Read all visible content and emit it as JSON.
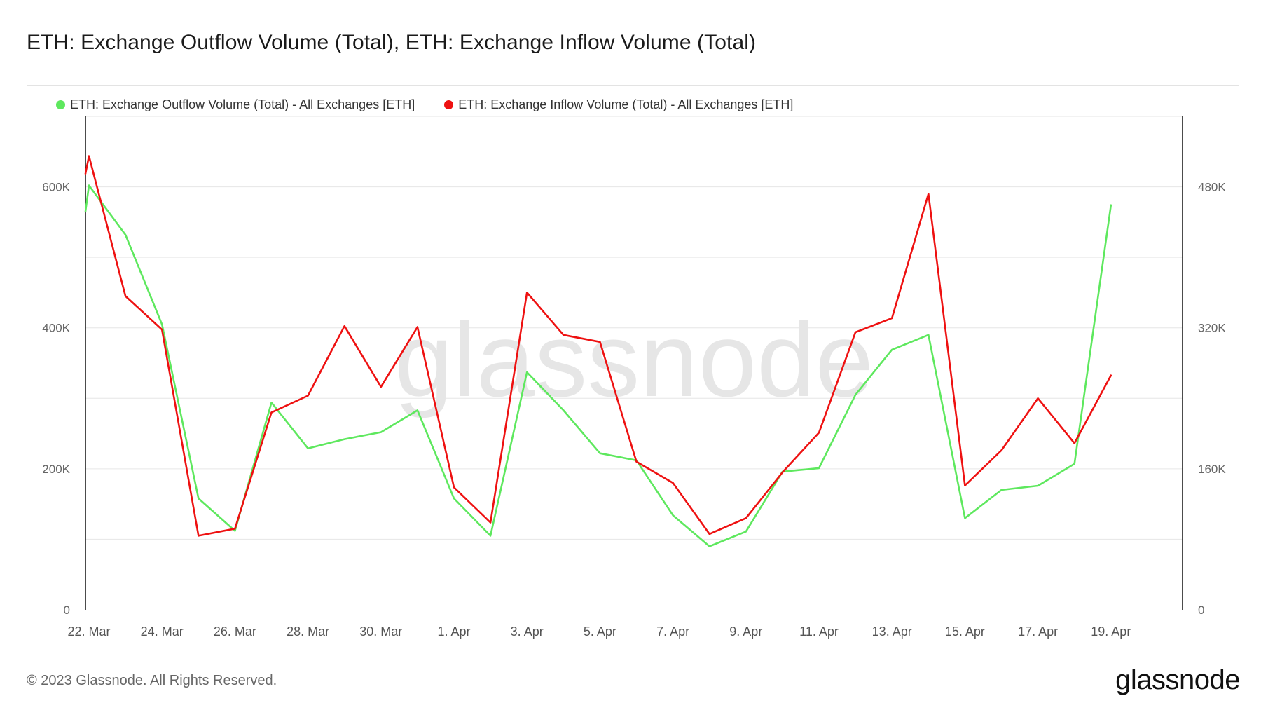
{
  "header": {
    "title": "ETH: Exchange Outflow Volume (Total), ETH: Exchange Inflow Volume (Total)"
  },
  "footer": {
    "copyright": "© 2023 Glassnode. All Rights Reserved.",
    "logo": "glassnode"
  },
  "watermark": "glassnode",
  "colors": {
    "outflow": "#5ee85e",
    "inflow": "#ee1111",
    "grid": "#e6e6e6",
    "axis": "#111111",
    "watermark": "#e6e6e6"
  },
  "chart_data": {
    "type": "line",
    "title": "ETH: Exchange Outflow Volume (Total), ETH: Exchange Inflow Volume (Total)",
    "legend_position": "top-left",
    "grid": true,
    "x": [
      "22. Mar",
      "23. Mar",
      "24. Mar",
      "25. Mar",
      "26. Mar",
      "27. Mar",
      "28. Mar",
      "29. Mar",
      "30. Mar",
      "31. Mar",
      "1. Apr",
      "2. Apr",
      "3. Apr",
      "4. Apr",
      "5. Apr",
      "6. Apr",
      "7. Apr",
      "8. Apr",
      "9. Apr",
      "10. Apr",
      "11. Apr",
      "12. Apr",
      "13. Apr",
      "14. Apr",
      "15. Apr",
      "16. Apr",
      "17. Apr",
      "18. Apr",
      "19. Apr"
    ],
    "x_ticks": [
      "22. Mar",
      "24. Mar",
      "26. Mar",
      "28. Mar",
      "30. Mar",
      "1. Apr",
      "3. Apr",
      "5. Apr",
      "7. Apr",
      "9. Apr",
      "11. Apr",
      "13. Apr",
      "15. Apr",
      "17. Apr",
      "19. Apr"
    ],
    "y_left": {
      "ticks": [
        "0",
        "200K",
        "400K",
        "600K"
      ],
      "tick_values": [
        0,
        200000,
        400000,
        600000
      ],
      "range": [
        0,
        700000
      ]
    },
    "y_right": {
      "ticks": [
        "0",
        "160K",
        "320K",
        "480K"
      ],
      "tick_values": [
        0,
        160000,
        320000,
        480000
      ],
      "range": [
        0,
        560000
      ]
    },
    "series": [
      {
        "name": "ETH: Exchange Outflow Volume (Total) - All Exchanges [ETH]",
        "axis": "left",
        "color": "#5ee85e",
        "start_value": 565000,
        "values": [
          602000,
          532000,
          405000,
          158000,
          112000,
          294000,
          229000,
          242000,
          252000,
          283000,
          158000,
          105000,
          337000,
          283000,
          222000,
          212000,
          134000,
          90000,
          111000,
          196000,
          201000,
          305000,
          369000,
          390000,
          130000,
          170000,
          176000,
          207000,
          574000
        ]
      },
      {
        "name": "ETH: Exchange Inflow Volume (Total) - All Exchanges [ETH]",
        "axis": "right",
        "color": "#ee1111",
        "start_value": 495000,
        "values": [
          515000,
          356000,
          318000,
          84000,
          92000,
          224000,
          243000,
          322000,
          253000,
          321000,
          139000,
          99000,
          360000,
          312000,
          304000,
          168000,
          144000,
          86000,
          104000,
          156000,
          201000,
          315000,
          331000,
          472000,
          141000,
          181000,
          240000,
          189000,
          266000
        ]
      }
    ]
  }
}
